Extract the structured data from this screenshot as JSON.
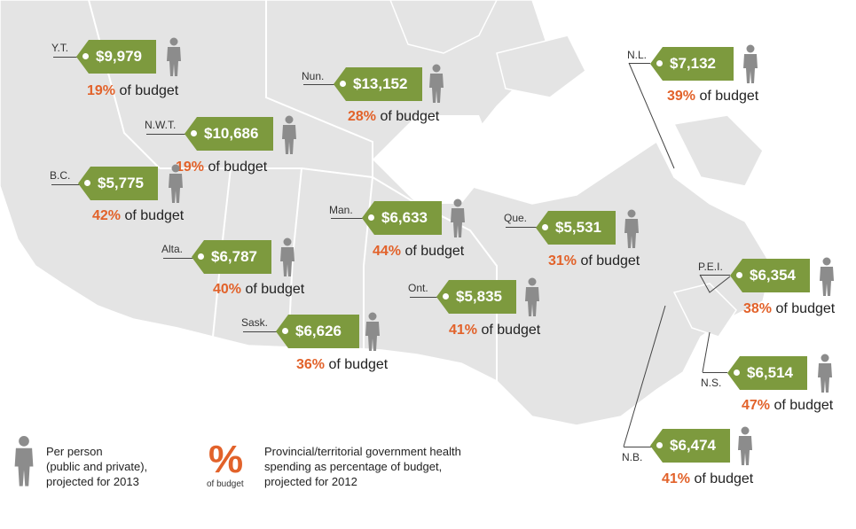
{
  "regions": [
    {
      "id": "yt",
      "abbr": "Y.T.",
      "amount": "$9,979",
      "pct": "19%"
    },
    {
      "id": "nwt",
      "abbr": "N.W.T.",
      "amount": "$10,686",
      "pct": "19%"
    },
    {
      "id": "bc",
      "abbr": "B.C.",
      "amount": "$5,775",
      "pct": "42%"
    },
    {
      "id": "alta",
      "abbr": "Alta.",
      "amount": "$6,787",
      "pct": "40%"
    },
    {
      "id": "sask",
      "abbr": "Sask.",
      "amount": "$6,626",
      "pct": "36%"
    },
    {
      "id": "nun",
      "abbr": "Nun.",
      "amount": "$13,152",
      "pct": "28%"
    },
    {
      "id": "man",
      "abbr": "Man.",
      "amount": "$6,633",
      "pct": "44%"
    },
    {
      "id": "ont",
      "abbr": "Ont.",
      "amount": "$5,835",
      "pct": "41%"
    },
    {
      "id": "que",
      "abbr": "Que.",
      "amount": "$5,531",
      "pct": "31%"
    },
    {
      "id": "nl",
      "abbr": "N.L.",
      "amount": "$7,132",
      "pct": "39%"
    },
    {
      "id": "pei",
      "abbr": "P.E.I.",
      "amount": "$6,354",
      "pct": "38%"
    },
    {
      "id": "ns",
      "abbr": "N.S.",
      "amount": "$6,514",
      "pct": "47%"
    },
    {
      "id": "nb",
      "abbr": "N.B.",
      "amount": "$6,474",
      "pct": "41%"
    }
  ],
  "budget_suffix": "of budget",
  "legend": {
    "person_line1": "Per person",
    "person_line2": "(public and private),",
    "person_line3": "projected for 2013",
    "pct_symbol": "%",
    "pct_caption": "of budget",
    "pct_line1": "Provincial/territorial government health",
    "pct_line2": "spending as percentage of budget,",
    "pct_line3": "projected for 2012"
  },
  "colors": {
    "tag": "#7d9a3e",
    "pct": "#e2622a",
    "land": "#e4e4e4",
    "person": "#8c8c8c"
  },
  "icons": {
    "person": "person-icon",
    "tag": "price-tag-shape"
  }
}
